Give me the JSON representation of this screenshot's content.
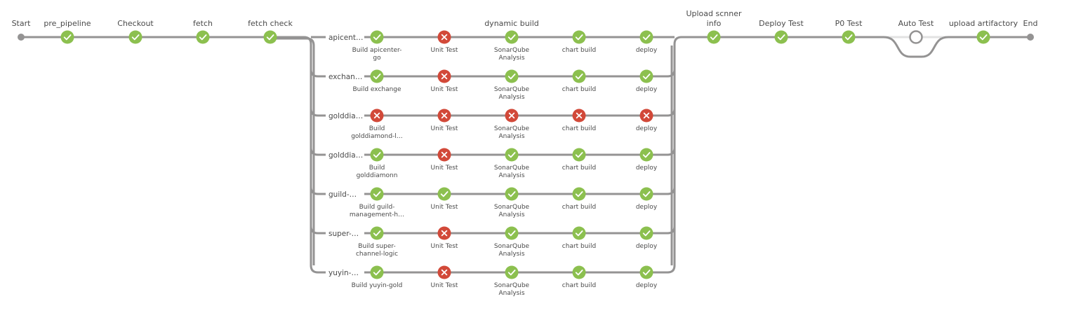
{
  "colors": {
    "success": "#8cc04f",
    "failure": "#d24939",
    "line": "#949393",
    "skipped_line": "#e2e2e2",
    "terminal": "#949393",
    "not_built_ring": "#949393"
  },
  "icons": {
    "success": "check-icon",
    "failure": "cross-icon",
    "not_built": "hollow-ring-icon"
  },
  "start": {
    "label": "Start"
  },
  "end": {
    "label": "End"
  },
  "stages_before": [
    {
      "label": "pre_pipeline",
      "status": "success"
    },
    {
      "label": "Checkout",
      "status": "success"
    },
    {
      "label": "fetch",
      "status": "success"
    },
    {
      "label": "fetch check",
      "status": "success"
    }
  ],
  "parallel": {
    "label": "dynamic build",
    "branches": [
      {
        "label": "apicent…",
        "steps": [
          {
            "lines": [
              "Build apicenter-",
              "go"
            ],
            "status": "success"
          },
          {
            "lines": [
              "Unit Test"
            ],
            "status": "failure"
          },
          {
            "lines": [
              "SonarQube",
              "Analysis"
            ],
            "status": "success"
          },
          {
            "lines": [
              "chart build"
            ],
            "status": "success"
          },
          {
            "lines": [
              "deploy"
            ],
            "status": "success"
          }
        ]
      },
      {
        "label": "exchan…",
        "steps": [
          {
            "lines": [
              "Build exchange"
            ],
            "status": "success"
          },
          {
            "lines": [
              "Unit Test"
            ],
            "status": "failure"
          },
          {
            "lines": [
              "SonarQube",
              "Analysis"
            ],
            "status": "success"
          },
          {
            "lines": [
              "chart build"
            ],
            "status": "success"
          },
          {
            "lines": [
              "deploy"
            ],
            "status": "success"
          }
        ]
      },
      {
        "label": "golddia…",
        "steps": [
          {
            "lines": [
              "Build",
              "golddiamond-l…"
            ],
            "status": "failure"
          },
          {
            "lines": [
              "Unit Test"
            ],
            "status": "failure"
          },
          {
            "lines": [
              "SonarQube",
              "Analysis"
            ],
            "status": "failure"
          },
          {
            "lines": [
              "chart build"
            ],
            "status": "failure"
          },
          {
            "lines": [
              "deploy"
            ],
            "status": "failure"
          }
        ]
      },
      {
        "label": "golddia…",
        "steps": [
          {
            "lines": [
              "Build",
              "golddiamonn"
            ],
            "status": "success"
          },
          {
            "lines": [
              "Unit Test"
            ],
            "status": "failure"
          },
          {
            "lines": [
              "SonarQube",
              "Analysis"
            ],
            "status": "success"
          },
          {
            "lines": [
              "chart build"
            ],
            "status": "success"
          },
          {
            "lines": [
              "deploy"
            ],
            "status": "success"
          }
        ]
      },
      {
        "label": "guild-…",
        "steps": [
          {
            "lines": [
              "Build guild-",
              "management-h…"
            ],
            "status": "success"
          },
          {
            "lines": [
              "Unit Test"
            ],
            "status": "success"
          },
          {
            "lines": [
              "SonarQube",
              "Analysis"
            ],
            "status": "success"
          },
          {
            "lines": [
              "chart build"
            ],
            "status": "success"
          },
          {
            "lines": [
              "deploy"
            ],
            "status": "success"
          }
        ]
      },
      {
        "label": "super-…",
        "steps": [
          {
            "lines": [
              "Build super-",
              "channel-logic"
            ],
            "status": "success"
          },
          {
            "lines": [
              "Unit Test"
            ],
            "status": "failure"
          },
          {
            "lines": [
              "SonarQube",
              "Analysis"
            ],
            "status": "success"
          },
          {
            "lines": [
              "chart build"
            ],
            "status": "success"
          },
          {
            "lines": [
              "deploy"
            ],
            "status": "success"
          }
        ]
      },
      {
        "label": "yuyin-…",
        "steps": [
          {
            "lines": [
              "Build yuyin-gold"
            ],
            "status": "success"
          },
          {
            "lines": [
              "Unit Test"
            ],
            "status": "failure"
          },
          {
            "lines": [
              "SonarQube",
              "Analysis"
            ],
            "status": "success"
          },
          {
            "lines": [
              "chart build"
            ],
            "status": "success"
          },
          {
            "lines": [
              "deploy"
            ],
            "status": "success"
          }
        ]
      }
    ]
  },
  "stages_after": [
    {
      "lines": [
        "Upload scnner",
        "info"
      ],
      "status": "success"
    },
    {
      "lines": [
        "Deploy Test"
      ],
      "status": "success"
    },
    {
      "lines": [
        "P0 Test"
      ],
      "status": "success"
    },
    {
      "lines": [
        "Auto Test"
      ],
      "status": "not_built"
    },
    {
      "lines": [
        "upload artifactory"
      ],
      "status": "success"
    }
  ]
}
